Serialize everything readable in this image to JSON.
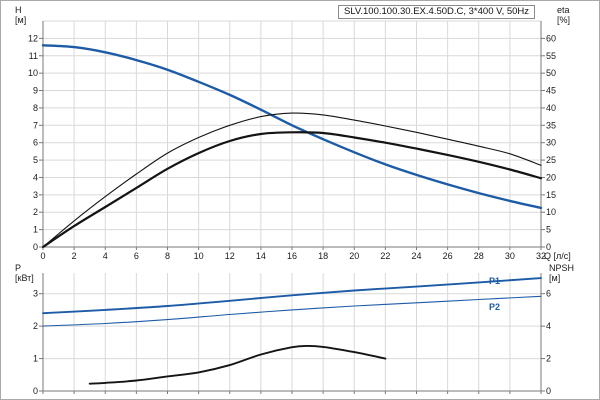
{
  "title": "SLV.100.100.30.EX.4.50D.C, 3*400 V, 50Hz",
  "axes": {
    "top_left": {
      "label": "H",
      "unit": "[м]",
      "ticks": [
        0,
        1,
        2,
        3,
        4,
        5,
        6,
        7,
        8,
        9,
        10,
        11,
        12
      ]
    },
    "top_right": {
      "label": "eta",
      "unit": "[%]",
      "ticks": [
        0,
        5,
        10,
        15,
        20,
        25,
        30,
        35,
        40,
        45,
        50,
        55,
        60
      ]
    },
    "x": {
      "label": "Q [л/с]",
      "ticks": [
        0,
        2,
        4,
        6,
        8,
        10,
        12,
        14,
        16,
        18,
        20,
        22,
        24,
        26,
        28,
        30,
        32
      ]
    },
    "bottom_left": {
      "label": "P",
      "unit": "[кВт]",
      "ticks": [
        0,
        1,
        2,
        3
      ]
    },
    "bottom_right": {
      "label": "NPSH",
      "unit": "[м]",
      "ticks": [
        0,
        2,
        4,
        6
      ]
    }
  },
  "series_labels": {
    "p1": "P1",
    "p2": "P2"
  },
  "colors": {
    "blue": "#1d5ba6",
    "black": "#141414",
    "grid": "#d9d9d9",
    "axis": "#7a7a7a",
    "text": "#1a1a1a"
  },
  "chart_data": [
    {
      "type": "line",
      "panel": "top",
      "x_label": "Q [л/с]",
      "y_left_label": "H [м]",
      "y_right_label": "eta [%]",
      "x_range": [
        0,
        32
      ],
      "y_left_range": [
        0,
        13
      ],
      "y_right_range": [
        0,
        65
      ],
      "grid": true,
      "series": [
        {
          "name": "head-curve",
          "axis": "left",
          "color": "blue",
          "width": 2.4,
          "x": [
            0,
            2,
            4,
            6,
            8,
            10,
            12,
            14,
            16,
            18,
            20,
            22,
            24,
            26,
            28,
            30,
            32
          ],
          "y": [
            11.6,
            11.5,
            11.2,
            10.75,
            10.2,
            9.5,
            8.75,
            7.9,
            7.0,
            6.2,
            5.45,
            4.75,
            4.15,
            3.6,
            3.1,
            2.65,
            2.25
          ]
        },
        {
          "name": "eta-hydraulic",
          "axis": "right",
          "color": "black",
          "width": 1.1,
          "x": [
            0,
            2,
            4,
            6,
            8,
            10,
            12,
            14,
            16,
            18,
            20,
            22,
            24,
            26,
            28,
            30,
            32
          ],
          "y": [
            0,
            7.5,
            14.5,
            21,
            27,
            31.5,
            35,
            37.5,
            38.5,
            38,
            36.5,
            34.8,
            33,
            31,
            29,
            26.8,
            23.5
          ]
        },
        {
          "name": "eta-total",
          "axis": "right",
          "color": "black",
          "width": 2.2,
          "x": [
            0,
            2,
            4,
            6,
            8,
            10,
            12,
            14,
            16,
            18,
            20,
            22,
            24,
            26,
            28,
            30,
            32
          ],
          "y": [
            0,
            6,
            11.5,
            17,
            22.5,
            27,
            30.5,
            32.5,
            33,
            32.8,
            31.5,
            30,
            28.3,
            26.5,
            24.5,
            22.3,
            19.8
          ]
        }
      ]
    },
    {
      "type": "line",
      "panel": "bottom",
      "x_label": "Q [л/с]",
      "y_left_label": "P [кВт]",
      "y_right_label": "NPSH [м]",
      "x_range": [
        0,
        32
      ],
      "y_left_range": [
        0,
        3.7
      ],
      "y_right_range": [
        0,
        7.4
      ],
      "grid": true,
      "series": [
        {
          "name": "P1",
          "axis": "left",
          "color": "blue",
          "width": 1.9,
          "x": [
            0,
            4,
            8,
            12,
            16,
            20,
            24,
            28,
            32
          ],
          "y": [
            2.4,
            2.5,
            2.62,
            2.78,
            2.95,
            3.1,
            3.22,
            3.35,
            3.48
          ]
        },
        {
          "name": "P2",
          "axis": "left",
          "color": "blue",
          "width": 1.1,
          "x": [
            0,
            4,
            8,
            12,
            16,
            20,
            24,
            28,
            32
          ],
          "y": [
            2.0,
            2.08,
            2.2,
            2.36,
            2.5,
            2.62,
            2.72,
            2.82,
            2.92
          ]
        },
        {
          "name": "NPSH",
          "axis": "right",
          "color": "black",
          "width": 1.9,
          "x": [
            3,
            4,
            6,
            8,
            10,
            12,
            14,
            16,
            17,
            18,
            20,
            22
          ],
          "y": [
            0.45,
            0.5,
            0.65,
            0.9,
            1.15,
            1.6,
            2.25,
            2.7,
            2.78,
            2.72,
            2.4,
            2.0
          ]
        }
      ]
    }
  ]
}
